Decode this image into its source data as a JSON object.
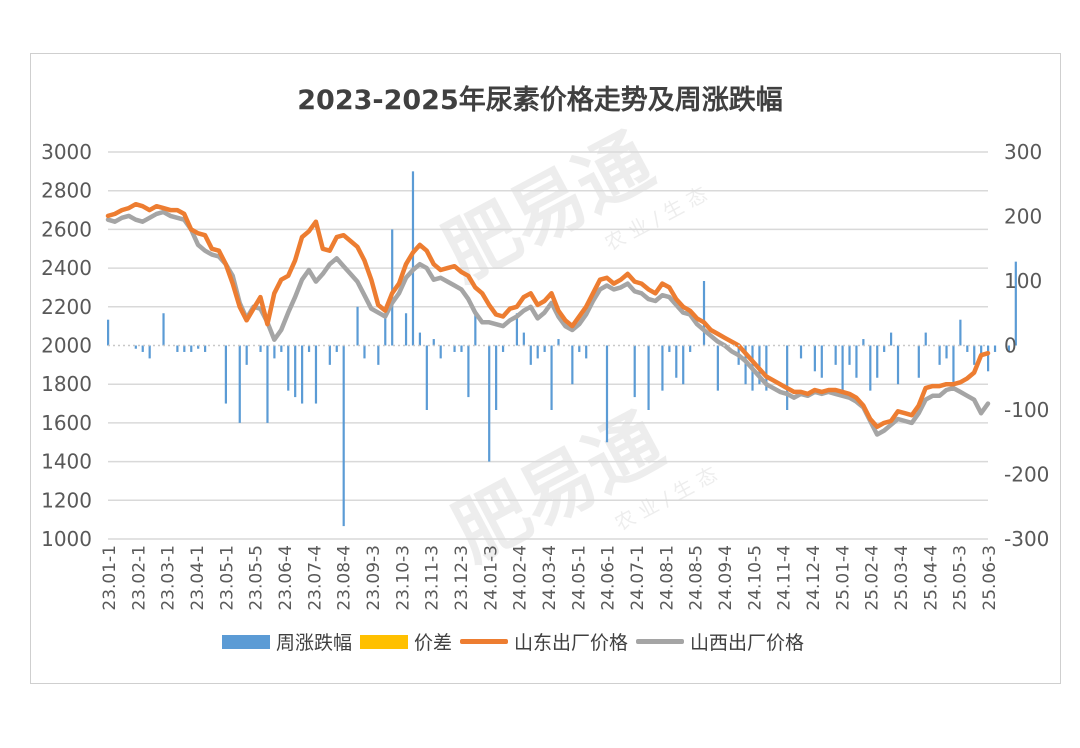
{
  "chart_data": {
    "type": "line",
    "title": "2023-2025年尿素价格走势及周涨跌幅",
    "watermark": "肥易通",
    "watermark_sub": "农 业 / 生 态",
    "y_left": {
      "min": 1000,
      "max": 3000,
      "ticks": [
        1000,
        1200,
        1400,
        1600,
        1800,
        2000,
        2200,
        2400,
        2600,
        2800,
        3000
      ]
    },
    "y_right": {
      "min": -300,
      "max": 300,
      "ticks": [
        -300,
        -200,
        -100,
        0,
        100,
        200,
        300
      ]
    },
    "x_ticks": [
      "23.01-1",
      "23.02-1",
      "23.03-1",
      "23.04-1",
      "23.05-1",
      "23.05-5",
      "23.06-4",
      "23.07-4",
      "23.08-4",
      "23.09-3",
      "23.10-3",
      "23.11-3",
      "23.12-3",
      "24.01-3",
      "24.02-4",
      "24.03-4",
      "24.05-1",
      "24.06-1",
      "24.07-1",
      "24.08-1",
      "24.08-5",
      "24.09-4",
      "24.10-5",
      "24.11-4",
      "24.12-4",
      "25.01-4",
      "25.02-4",
      "25.03-4",
      "25.04-4",
      "25.05-3",
      "25.06-3"
    ],
    "num_weeks": 128,
    "series": [
      {
        "name": "周涨跌幅",
        "type": "bar",
        "axis": "right",
        "color": "#5b9bd5",
        "values": [
          40,
          0,
          0,
          0,
          -5,
          -10,
          -20,
          0,
          50,
          0,
          -10,
          -10,
          -10,
          -5,
          -10,
          0,
          0,
          -90,
          0,
          -120,
          -30,
          0,
          -10,
          -120,
          -20,
          -10,
          -70,
          -80,
          -90,
          -10,
          -90,
          0,
          -30,
          -10,
          -280,
          0,
          60,
          -20,
          0,
          -30,
          50,
          180,
          0,
          50,
          270,
          20,
          -100,
          10,
          -20,
          0,
          -10,
          -10,
          -80,
          50,
          0,
          -180,
          -100,
          -10,
          0,
          50,
          20,
          -30,
          -20,
          -10,
          -100,
          10,
          0,
          -60,
          -10,
          -20,
          0,
          0,
          -150,
          0,
          0,
          0,
          -80,
          0,
          -100,
          0,
          -70,
          -10,
          -50,
          -60,
          -10,
          0,
          100,
          0,
          -70,
          0,
          0,
          -30,
          -60,
          -70,
          -60,
          -70,
          0,
          0,
          -100,
          0,
          -20,
          0,
          -40,
          -50,
          0,
          -30,
          -70,
          -30,
          -50,
          10,
          -70,
          -50,
          -10,
          20,
          -60,
          0,
          0,
          -50,
          20,
          0,
          -30,
          -20,
          -70,
          40,
          -10,
          -30,
          -20,
          -40,
          -10,
          0,
          -10,
          130
        ]
      },
      {
        "name": "价差",
        "type": "bar",
        "axis": "right",
        "color": "#ffc000",
        "values": []
      },
      {
        "name": "山东出厂价格",
        "type": "line",
        "axis": "left",
        "color": "#ed7d31",
        "values": [
          2670,
          2680,
          2700,
          2710,
          2730,
          2720,
          2700,
          2720,
          2710,
          2700,
          2700,
          2680,
          2600,
          2580,
          2570,
          2500,
          2490,
          2420,
          2320,
          2200,
          2130,
          2190,
          2250,
          2110,
          2270,
          2340,
          2360,
          2440,
          2560,
          2590,
          2640,
          2500,
          2490,
          2560,
          2570,
          2540,
          2510,
          2440,
          2340,
          2210,
          2180,
          2270,
          2320,
          2420,
          2480,
          2520,
          2490,
          2420,
          2390,
          2400,
          2410,
          2380,
          2360,
          2300,
          2270,
          2210,
          2160,
          2150,
          2190,
          2200,
          2250,
          2270,
          2210,
          2230,
          2270,
          2180,
          2130,
          2100,
          2150,
          2200,
          2270,
          2340,
          2350,
          2320,
          2340,
          2370,
          2330,
          2320,
          2290,
          2270,
          2320,
          2300,
          2240,
          2200,
          2180,
          2140,
          2120,
          2080,
          2060,
          2040,
          2020,
          2000,
          1960,
          1920,
          1880,
          1840,
          1820,
          1800,
          1780,
          1760,
          1760,
          1750,
          1770,
          1760,
          1770,
          1770,
          1760,
          1750,
          1730,
          1690,
          1620,
          1580,
          1600,
          1610,
          1660,
          1650,
          1640,
          1690,
          1780,
          1790,
          1790,
          1800,
          1800,
          1810,
          1830,
          1860,
          1950,
          1960
        ]
      },
      {
        "name": "山西出厂价格",
        "type": "line",
        "axis": "left",
        "color": "#a5a5a5",
        "values": [
          2650,
          2640,
          2660,
          2670,
          2650,
          2640,
          2660,
          2680,
          2690,
          2670,
          2660,
          2650,
          2600,
          2520,
          2490,
          2470,
          2460,
          2420,
          2360,
          2220,
          2140,
          2200,
          2190,
          2120,
          2030,
          2080,
          2170,
          2250,
          2340,
          2390,
          2330,
          2370,
          2420,
          2450,
          2410,
          2370,
          2330,
          2260,
          2190,
          2170,
          2150,
          2220,
          2270,
          2350,
          2390,
          2420,
          2400,
          2340,
          2350,
          2330,
          2310,
          2290,
          2240,
          2170,
          2120,
          2120,
          2110,
          2100,
          2130,
          2150,
          2180,
          2200,
          2140,
          2170,
          2220,
          2150,
          2100,
          2080,
          2110,
          2160,
          2230,
          2290,
          2310,
          2290,
          2300,
          2320,
          2280,
          2270,
          2240,
          2230,
          2260,
          2250,
          2210,
          2170,
          2160,
          2110,
          2080,
          2050,
          2020,
          2000,
          1970,
          1950,
          1920,
          1880,
          1840,
          1800,
          1780,
          1760,
          1750,
          1730,
          1750,
          1740,
          1760,
          1750,
          1760,
          1750,
          1740,
          1730,
          1710,
          1680,
          1610,
          1540,
          1560,
          1590,
          1620,
          1610,
          1600,
          1650,
          1720,
          1740,
          1740,
          1770,
          1780,
          1760,
          1740,
          1720,
          1650,
          1700
        ]
      }
    ]
  }
}
